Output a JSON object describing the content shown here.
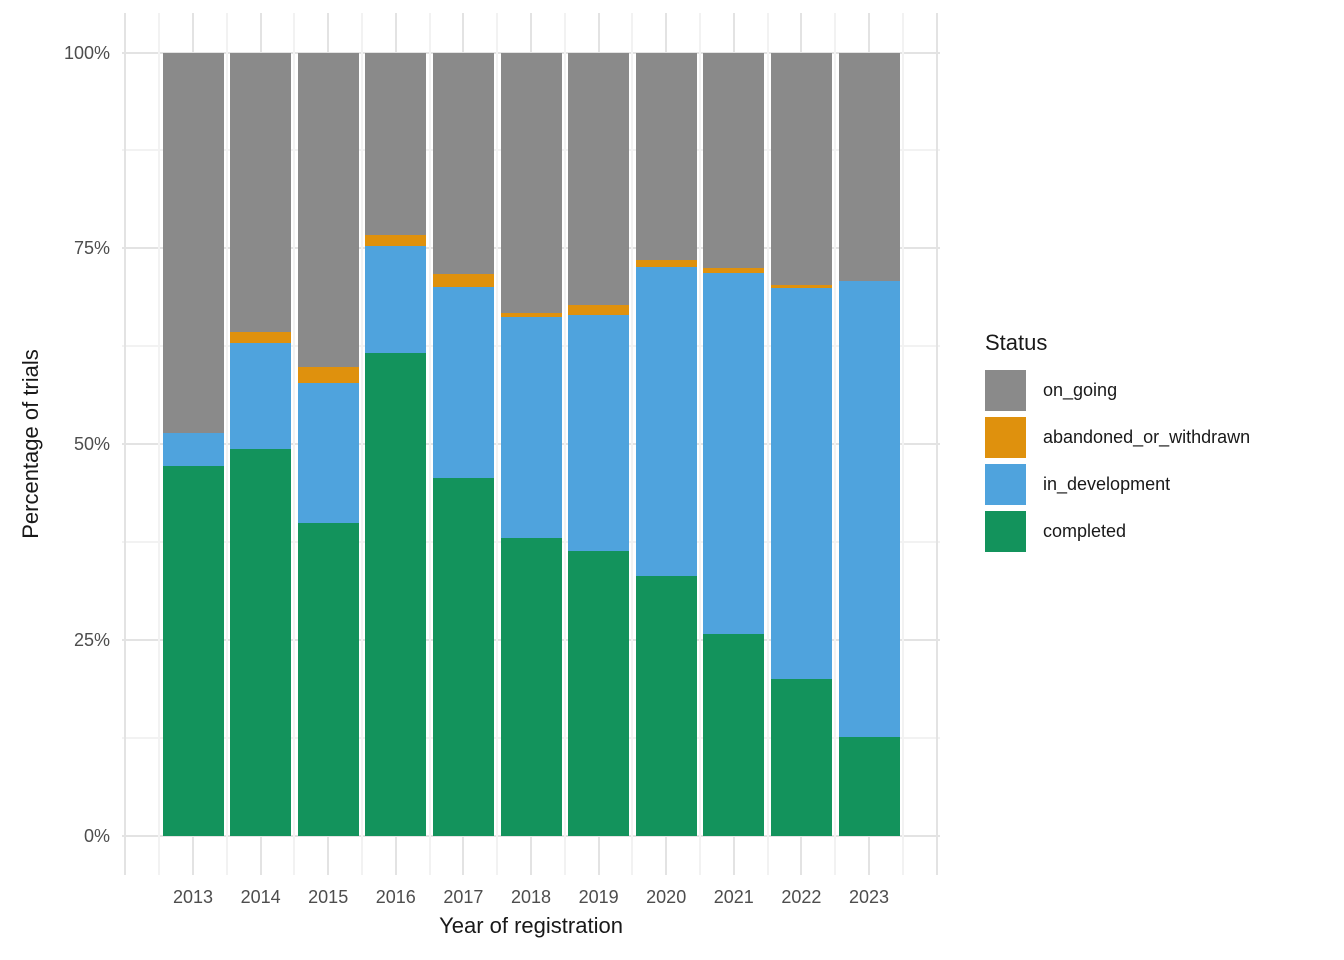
{
  "chart_data": {
    "type": "bar",
    "variant": "stacked-100-percent",
    "title": "",
    "xlabel": "Year of registration",
    "ylabel": "Percentage of trials",
    "ylim": [
      0,
      100
    ],
    "grid": "major+minor",
    "legend_position": "right",
    "legend_title": "Status",
    "y_tick_labels": [
      "0%",
      "25%",
      "50%",
      "75%",
      "100%"
    ],
    "y_major_breaks": [
      0,
      25,
      50,
      75,
      100
    ],
    "y_minor_breaks": [
      12.5,
      37.5,
      62.5,
      87.5
    ],
    "categories": [
      "2013",
      "2014",
      "2015",
      "2016",
      "2017",
      "2018",
      "2019",
      "2020",
      "2021",
      "2022",
      "2023"
    ],
    "stack_order_bottom_to_top": [
      "completed",
      "in_development",
      "abandoned_or_withdrawn",
      "on_going"
    ],
    "legend_order_top_to_bottom": [
      "on_going",
      "abandoned_or_withdrawn",
      "in_development",
      "completed"
    ],
    "series": [
      {
        "name": "on_going",
        "color": "#8a8a8a",
        "values": [
          48.6,
          35.7,
          40.1,
          23.3,
          28.3,
          33.3,
          32.2,
          26.5,
          27.5,
          29.7,
          29.1
        ]
      },
      {
        "name": "abandoned_or_withdrawn",
        "color": "#df910d",
        "values": [
          0,
          1.4,
          2.1,
          1.4,
          1.6,
          0.5,
          1.3,
          0.9,
          0.6,
          0.3,
          0
        ]
      },
      {
        "name": "in_development",
        "color": "#4fa3dd",
        "values": [
          4.2,
          13.5,
          17.9,
          13.7,
          24.4,
          28.2,
          30.1,
          39.4,
          46.1,
          49.9,
          58.3
        ]
      },
      {
        "name": "completed",
        "color": "#13935c",
        "values": [
          47.2,
          49.4,
          39.9,
          61.6,
          45.7,
          38.0,
          36.4,
          33.2,
          25.8,
          20.1,
          12.6
        ]
      }
    ]
  }
}
